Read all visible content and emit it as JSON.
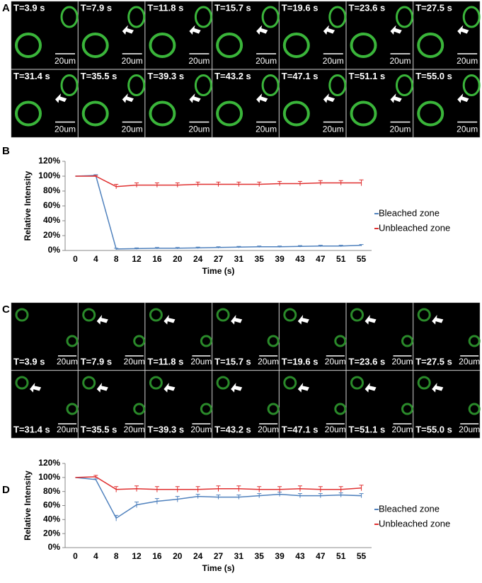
{
  "image_panels": [
    {
      "label": "A",
      "frame_labels": [
        "T=3.9 s",
        "T=7.9 s",
        "T=11.8 s",
        "T=15.7 s",
        "T=19.6 s",
        "T=23.6 s",
        "T=27.5 s",
        "T=31.4 s",
        "T=35.5 s",
        "T=39.3 s",
        "T=43.2 s",
        "T=47.1 s",
        "T=51.1 s",
        "T=55.0 s"
      ],
      "scale_bar": "20um"
    },
    {
      "label": "C",
      "frame_labels": [
        "T=3.9 s",
        "T=7.9 s",
        "T=11.8 s",
        "T=15.7 s",
        "T=19.6 s",
        "T=23.6 s",
        "T=27.5 s",
        "T=31.4 s",
        "T=35.5 s",
        "T=39.3 s",
        "T=43.2 s",
        "T=47.1 s",
        "T=51.1 s",
        "T=55.0 s"
      ],
      "scale_bar": "20um"
    }
  ],
  "chart_data": [
    {
      "type": "line",
      "panel_label": "B",
      "x_label": "Time (s)",
      "y_label": "Relative Intensity",
      "categories": [
        0,
        4,
        8,
        12,
        16,
        20,
        24,
        27,
        31,
        35,
        39,
        43,
        47,
        51,
        55
      ],
      "series": [
        {
          "name": "Bleached zone",
          "color": "#4f81bd",
          "values": [
            100,
            101,
            2,
            2.5,
            3,
            3,
            3.5,
            4,
            4.5,
            5,
            5,
            5.5,
            6,
            6,
            7
          ],
          "errors": [
            0,
            1,
            1,
            1,
            1,
            1,
            1,
            1,
            1,
            1,
            1,
            1,
            1,
            1,
            1
          ]
        },
        {
          "name": "Unbleached zone",
          "color": "#e03030",
          "values": [
            100,
            100,
            86,
            88,
            88,
            88,
            89,
            89,
            89,
            89,
            90,
            90,
            91,
            91,
            91
          ],
          "errors": [
            0,
            1,
            3,
            3,
            3,
            3,
            3,
            3,
            3,
            3,
            3,
            3,
            3,
            3,
            4
          ]
        }
      ],
      "ylim": [
        0,
        120
      ],
      "yticks": [
        {
          "value": 0,
          "label": "0%"
        },
        {
          "value": 20,
          "label": "20%"
        },
        {
          "value": 40,
          "label": "40%"
        },
        {
          "value": 60,
          "label": "60%"
        },
        {
          "value": 80,
          "label": "80%"
        },
        {
          "value": 100,
          "label": "100%"
        },
        {
          "value": 120,
          "label": "120%"
        }
      ],
      "legend": "right"
    },
    {
      "type": "line",
      "panel_label": "D",
      "x_label": "Time (s)",
      "y_label": "Relative Intensity",
      "categories": [
        0,
        4,
        8,
        12,
        16,
        20,
        24,
        27,
        31,
        35,
        39,
        43,
        47,
        51,
        55
      ],
      "series": [
        {
          "name": "Bleached zone",
          "color": "#4f81bd",
          "values": [
            100,
            97,
            42,
            61,
            66,
            69,
            73,
            72,
            72,
            74,
            76,
            74,
            74,
            75,
            74
          ],
          "errors": [
            0,
            1,
            4,
            4,
            4,
            4,
            3,
            3,
            3,
            3,
            3,
            3,
            3,
            3,
            3
          ]
        },
        {
          "name": "Unbleached zone",
          "color": "#e03030",
          "values": [
            100,
            101,
            83,
            84,
            83,
            83,
            83,
            84,
            84,
            83,
            83,
            84,
            83,
            83,
            85
          ],
          "errors": [
            0,
            2,
            4,
            4,
            4,
            4,
            4,
            4,
            4,
            4,
            4,
            4,
            4,
            4,
            4
          ]
        }
      ],
      "ylim": [
        0,
        120
      ],
      "yticks": [
        {
          "value": 0,
          "label": "0%"
        },
        {
          "value": 20,
          "label": "20%"
        },
        {
          "value": 40,
          "label": "40%"
        },
        {
          "value": 60,
          "label": "60%"
        },
        {
          "value": 80,
          "label": "80%"
        },
        {
          "value": 100,
          "label": "100%"
        },
        {
          "value": 120,
          "label": "120%"
        }
      ],
      "legend": "right"
    }
  ]
}
